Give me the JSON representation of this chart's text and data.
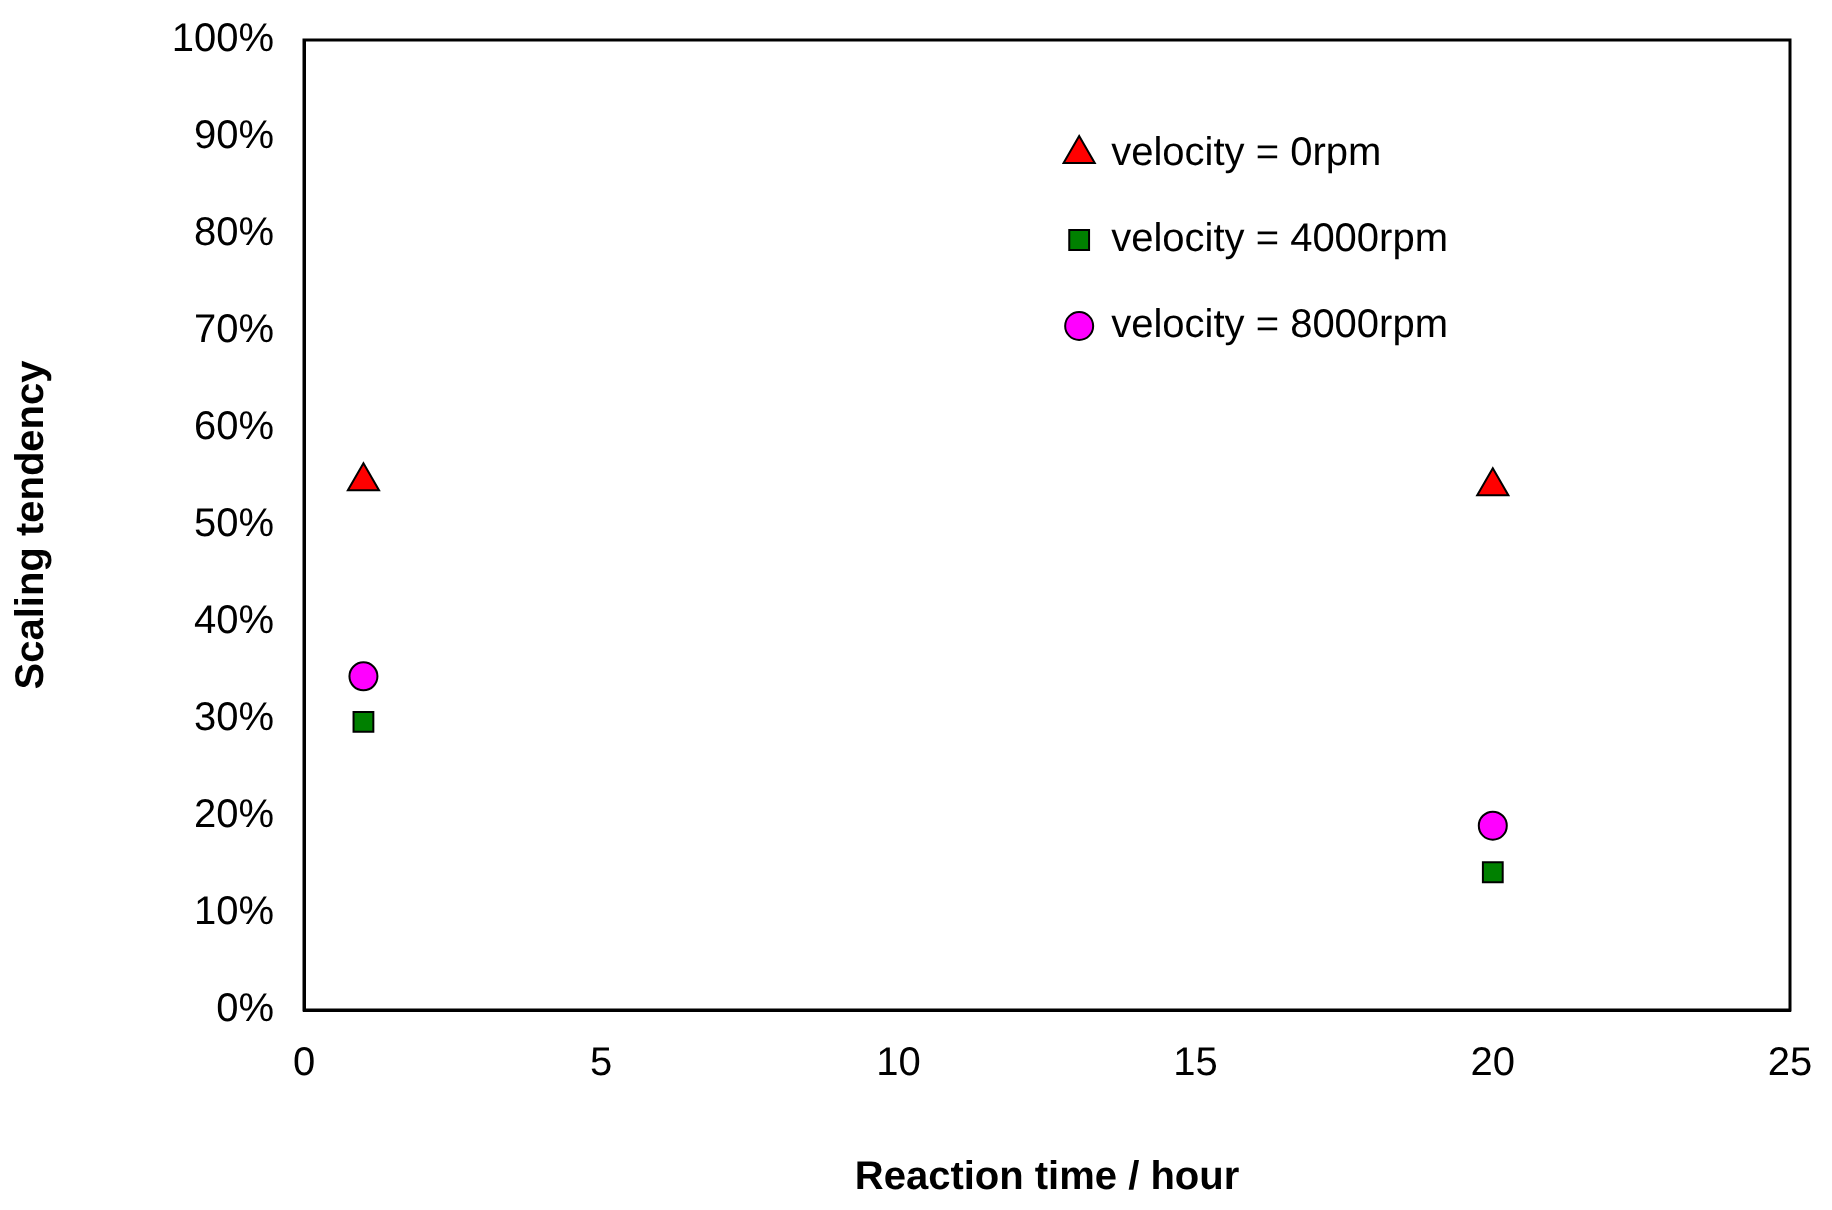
{
  "chart_data": {
    "type": "scatter",
    "xlabel": "Reaction time / hour",
    "ylabel": "Scaling tendency",
    "xlim": [
      0,
      25
    ],
    "xticks": [
      0,
      5,
      10,
      15,
      20,
      25
    ],
    "ylim": [
      0,
      100
    ],
    "yticks": [
      {
        "value": 0,
        "label": "0%"
      },
      {
        "value": 10,
        "label": "10%"
      },
      {
        "value": 20,
        "label": "20%"
      },
      {
        "value": 30,
        "label": "30%"
      },
      {
        "value": 40,
        "label": "40%"
      },
      {
        "value": 50,
        "label": "50%"
      },
      {
        "value": 60,
        "label": "60%"
      },
      {
        "value": 70,
        "label": "70%"
      },
      {
        "value": 80,
        "label": "80%"
      },
      {
        "value": 90,
        "label": "90%"
      },
      {
        "value": 100,
        "label": "100%"
      }
    ],
    "grid": false,
    "legend": "top right",
    "x": [
      1,
      20
    ],
    "series": [
      {
        "name": "velocity = 0rpm",
        "color": "#ff0000",
        "marker": "triangle",
        "values": [
          54.5,
          54
        ]
      },
      {
        "name": "velocity = 4000rpm",
        "color": "#008000",
        "marker": "square",
        "values": [
          29.7,
          14.2
        ]
      },
      {
        "name": "velocity = 8000rpm",
        "color": "#ff00ff",
        "marker": "circle",
        "values": [
          34.4,
          19
        ]
      }
    ]
  }
}
